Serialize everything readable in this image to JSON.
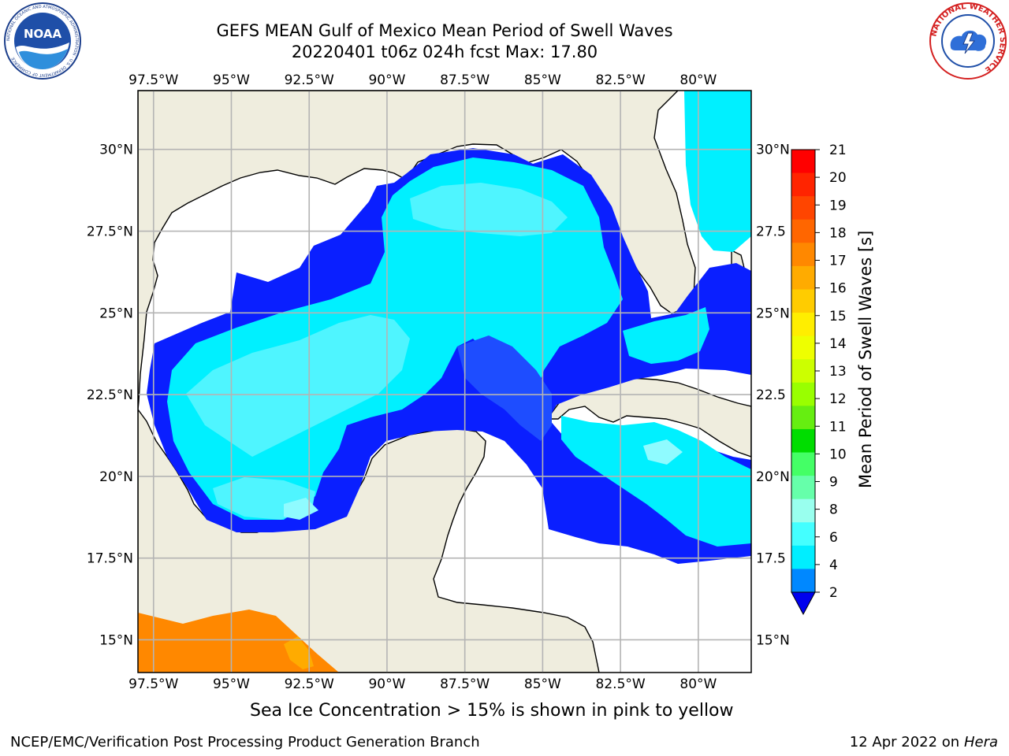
{
  "header": {
    "title": "GEFS MEAN Gulf of Mexico Mean Period of Swell Waves",
    "subtitle": "20220401 t06z 024h fcst   Max: 17.80"
  },
  "logos": {
    "left": "NOAA",
    "left_ring": "NATIONAL OCEANIC AND ATMOSPHERIC ADMINISTRATION · U.S. DEPARTMENT OF COMMERCE",
    "right_ring": "NATIONAL WEATHER SERVICE"
  },
  "map": {
    "lon_labels": [
      "97.5°W",
      "95°W",
      "92.5°W",
      "90°W",
      "87.5°W",
      "85°W",
      "82.5°W",
      "80°W"
    ],
    "lat_labels_left": [
      "30°N",
      "27.5°N",
      "25°N",
      "22.5°N",
      "20°N",
      "17.5°N",
      "15°N"
    ],
    "lat_labels_right": [
      "30°N",
      "27.5",
      "25°N",
      "22.5",
      "20°N",
      "17.5",
      "15°N"
    ],
    "extent": {
      "lon_min": -98,
      "lon_max": -78.3,
      "lat_min": 14,
      "lat_max": 31.8
    },
    "colors": {
      "land": "#efedde",
      "grid": "#b4b4b4",
      "coast": "#000000"
    }
  },
  "colorbar": {
    "label": "Mean Period of Swell Waves [s]",
    "ticks": [
      "21",
      "20",
      "19",
      "18",
      "17",
      "16",
      "15",
      "14",
      "13",
      "12",
      "11",
      "10",
      "9",
      "8",
      "6",
      "4",
      "2"
    ],
    "colors": [
      "#ff0000",
      "#ff2400",
      "#ff4500",
      "#ff6600",
      "#ff8800",
      "#ffab00",
      "#ffcc00",
      "#ffee00",
      "#eeff00",
      "#ccff00",
      "#99ff00",
      "#66ee11",
      "#00dd00",
      "#44ff66",
      "#66ffaa",
      "#99ffee",
      "#44ffff",
      "#00eeff",
      "#0088ff"
    ],
    "extend_color": "#0000ee"
  },
  "footer": {
    "ice_note": "Sea Ice Concentration > 15% is shown in pink to yellow",
    "org": "NCEP/EMC/Verification Post Processing Product Generation Branch",
    "date": "12 Apr 2022 on ",
    "machine": "Hera"
  }
}
